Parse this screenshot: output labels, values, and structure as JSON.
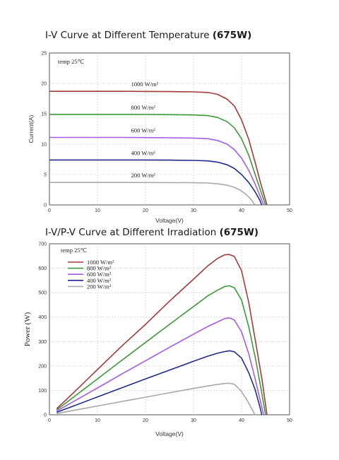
{
  "chart_data": [
    {
      "type": "line",
      "title": "I-V Curve at Different Temperature",
      "title_suffix": "(675W)",
      "xlabel": "Voltage(V)",
      "ylabel": "Current(A)",
      "xlim": [
        0,
        50
      ],
      "ylim": [
        0,
        25
      ],
      "xticks": [
        "0",
        "10",
        "20",
        "30",
        "40",
        "50"
      ],
      "yticks": [
        "0",
        "5",
        "10",
        "15",
        "20",
        "25"
      ],
      "grid": true,
      "annotation": "temp  25℃",
      "series": [
        {
          "name": "1000 W/m²",
          "color": "#a33a3a",
          "x": [
            0,
            5,
            10,
            15,
            20,
            25,
            30,
            33,
            35,
            37,
            38.5,
            40,
            41.5,
            43,
            44,
            45.3
          ],
          "y": [
            18.7,
            18.7,
            18.7,
            18.7,
            18.68,
            18.65,
            18.6,
            18.5,
            18.2,
            17.4,
            16.3,
            14.0,
            10.8,
            6.5,
            3.5,
            0
          ]
        },
        {
          "name": "800 W/m²",
          "color": "#3a9a3a",
          "x": [
            0,
            5,
            10,
            15,
            20,
            25,
            30,
            33,
            35,
            37,
            38.5,
            40,
            41.5,
            43,
            44.2,
            45
          ],
          "y": [
            14.9,
            14.9,
            14.9,
            14.9,
            14.88,
            14.85,
            14.8,
            14.7,
            14.4,
            13.7,
            12.7,
            10.9,
            8.2,
            4.6,
            1.8,
            0
          ]
        },
        {
          "name": "600 W/m²",
          "color": "#a35ce6",
          "x": [
            0,
            5,
            10,
            15,
            20,
            25,
            30,
            33,
            35,
            37,
            38.5,
            40,
            41.5,
            42.8,
            44,
            44.6
          ],
          "y": [
            11.1,
            11.1,
            11.1,
            11.1,
            11.08,
            11.05,
            11.0,
            10.9,
            10.6,
            10.0,
            9.1,
            7.7,
            5.7,
            3.5,
            1.2,
            0
          ]
        },
        {
          "name": "400 W/m²",
          "color": "#1f2a8a",
          "x": [
            0,
            5,
            10,
            15,
            20,
            25,
            30,
            33,
            35,
            37,
            38.5,
            40,
            41.5,
            42.8,
            43.8,
            44.2
          ],
          "y": [
            7.4,
            7.4,
            7.4,
            7.4,
            7.39,
            7.37,
            7.33,
            7.25,
            7.05,
            6.6,
            6.0,
            5.0,
            3.7,
            2.2,
            0.8,
            0
          ]
        },
        {
          "name": "200 W/m²",
          "color": "#a8a8a8",
          "x": [
            0,
            5,
            10,
            15,
            20,
            25,
            30,
            33,
            35,
            37,
            38.5,
            39.8,
            41,
            42,
            42.8
          ],
          "y": [
            3.7,
            3.7,
            3.7,
            3.7,
            3.69,
            3.68,
            3.65,
            3.6,
            3.48,
            3.25,
            2.9,
            2.4,
            1.7,
            0.9,
            0
          ]
        }
      ]
    },
    {
      "type": "line",
      "title": "I-V/P-V Curve at Different Irradiation",
      "title_suffix": "(675W)",
      "xlabel": "Voltage(V)",
      "ylabel": "Power (W)",
      "xlim": [
        0,
        50
      ],
      "ylim": [
        0,
        700
      ],
      "xticks": [
        "0",
        "10",
        "20",
        "30",
        "40",
        "50"
      ],
      "yticks": [
        "0",
        "100",
        "200",
        "300",
        "400",
        "500",
        "600",
        "700"
      ],
      "grid": true,
      "annotation": "temp  25℃",
      "legend_position": "top-left",
      "series": [
        {
          "name": "1000  W/m²",
          "color": "#a33a3a",
          "x": [
            1.5,
            5,
            10,
            15,
            20,
            25,
            30,
            33,
            35,
            36.5,
            37.5,
            38.5,
            40,
            41.5,
            43,
            44.3,
            45.3
          ],
          "y": [
            25,
            90,
            185,
            280,
            370,
            465,
            555,
            610,
            640,
            655,
            656,
            648,
            590,
            460,
            290,
            140,
            0
          ]
        },
        {
          "name": "800  W/m²",
          "color": "#3a9a3a",
          "x": [
            1.5,
            5,
            10,
            15,
            20,
            25,
            30,
            33,
            35,
            36.5,
            37.5,
            38.5,
            40,
            41.5,
            43,
            44.2,
            45
          ],
          "y": [
            20,
            72,
            147,
            222,
            296,
            370,
            443,
            487,
            510,
            525,
            528,
            520,
            470,
            360,
            220,
            90,
            0
          ]
        },
        {
          "name": "600  W/m²",
          "color": "#a35ce6",
          "x": [
            1.5,
            5,
            10,
            15,
            20,
            25,
            30,
            33,
            35,
            36.5,
            37.5,
            38.5,
            40,
            41.5,
            42.8,
            44,
            44.6
          ],
          "y": [
            15,
            54,
            110,
            166,
            221,
            276,
            330,
            362,
            380,
            394,
            397,
            388,
            340,
            250,
            150,
            50,
            0
          ]
        },
        {
          "name": "400  W/m²",
          "color": "#1f2a8a",
          "x": [
            1.5,
            5,
            10,
            15,
            20,
            25,
            30,
            33,
            35,
            36.5,
            37.5,
            38.5,
            40,
            41.5,
            42.8,
            43.8,
            44.2
          ],
          "y": [
            10,
            36,
            73,
            110,
            147,
            183,
            219,
            240,
            252,
            259,
            262,
            258,
            232,
            172,
            105,
            35,
            0
          ]
        },
        {
          "name": "200  W/m²",
          "color": "#a8a8a8",
          "x": [
            1.5,
            5,
            10,
            15,
            20,
            25,
            30,
            33,
            35,
            36.5,
            37.5,
            38.5,
            39.8,
            41,
            42,
            42.8
          ],
          "y": [
            5,
            18,
            36,
            54,
            72,
            90,
            108,
            118,
            124,
            128,
            129,
            125,
            100,
            65,
            30,
            0
          ]
        }
      ]
    }
  ]
}
